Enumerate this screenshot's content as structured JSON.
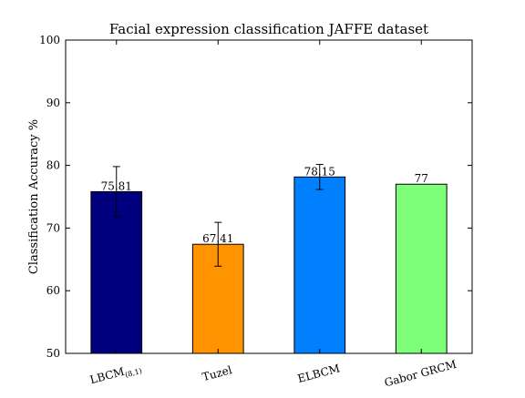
{
  "chart_data": {
    "type": "bar",
    "title": "Facial expression classification JAFFE dataset",
    "xlabel": "",
    "ylabel": "Classification Accuracy %",
    "ylim": [
      50,
      100
    ],
    "yticks": [
      50,
      60,
      70,
      80,
      90,
      100
    ],
    "grid": false,
    "legend": "none",
    "categories": [
      {
        "main": "LBCM",
        "sub": "(8,1)"
      },
      {
        "main": "Tuzel",
        "sub": ""
      },
      {
        "main": "ELBCM",
        "sub": ""
      },
      {
        "main": "Gabor GRCM",
        "sub": ""
      }
    ],
    "values": [
      75.81,
      67.41,
      78.15,
      77
    ],
    "value_labels": [
      "75.81",
      "67.41",
      "78.15",
      "77"
    ],
    "error": [
      4.0,
      3.5,
      2.0,
      null
    ],
    "colors": [
      "#00007f",
      "#ff9400",
      "#0080ff",
      "#7dff7a"
    ]
  }
}
